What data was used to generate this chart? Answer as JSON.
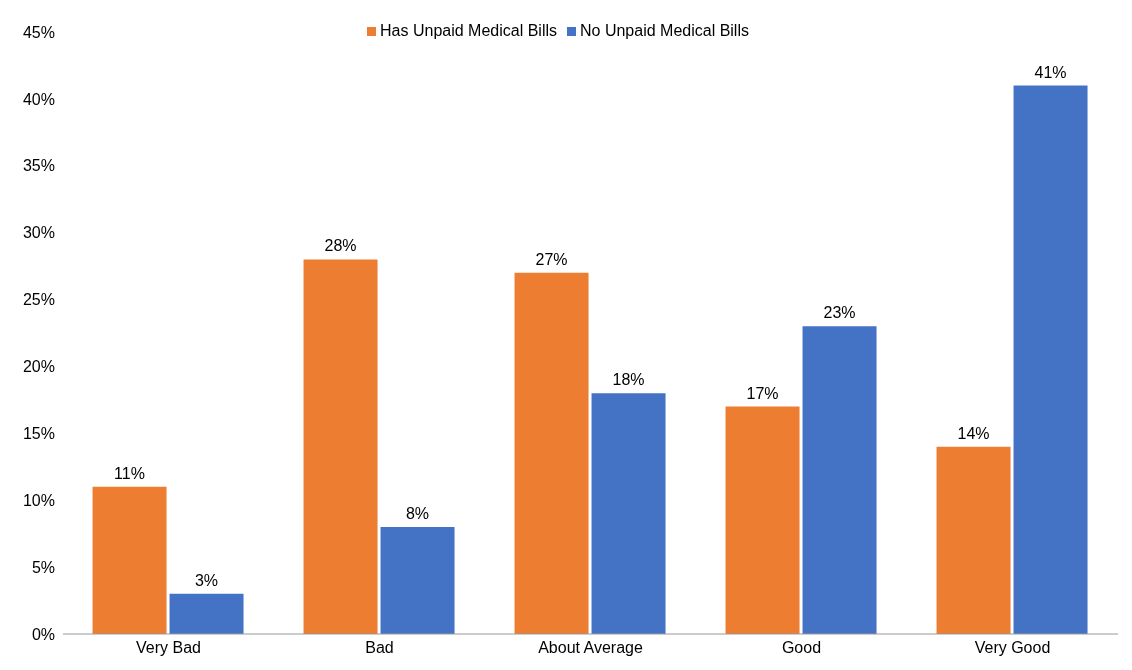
{
  "chart_data": {
    "type": "bar",
    "categories": [
      "Very Bad",
      "Bad",
      "About Average",
      "Good",
      "Very Good"
    ],
    "series": [
      {
        "name": "Has Unpaid Medical Bills",
        "color": "#ed7d31",
        "values": [
          11,
          28,
          27,
          17,
          14
        ],
        "value_labels": [
          "11%",
          "28%",
          "27%",
          "17%",
          "14%"
        ]
      },
      {
        "name": "No Unpaid Medical Bills",
        "color": "#4472c4",
        "values": [
          3,
          8,
          18,
          23,
          41
        ],
        "value_labels": [
          "3%",
          "8%",
          "18%",
          "23%",
          "41%"
        ]
      }
    ],
    "ylim": [
      0,
      45
    ],
    "yticks": [
      {
        "value": 0,
        "label": "0%"
      },
      {
        "value": 5,
        "label": "5%"
      },
      {
        "value": 10,
        "label": "10%"
      },
      {
        "value": 15,
        "label": "15%"
      },
      {
        "value": 20,
        "label": "20%"
      },
      {
        "value": 25,
        "label": "25%"
      },
      {
        "value": 30,
        "label": "30%"
      },
      {
        "value": 35,
        "label": "35%"
      },
      {
        "value": 40,
        "label": "40%"
      },
      {
        "value": 45,
        "label": "45%"
      }
    ],
    "grid": false,
    "legend": "top"
  }
}
